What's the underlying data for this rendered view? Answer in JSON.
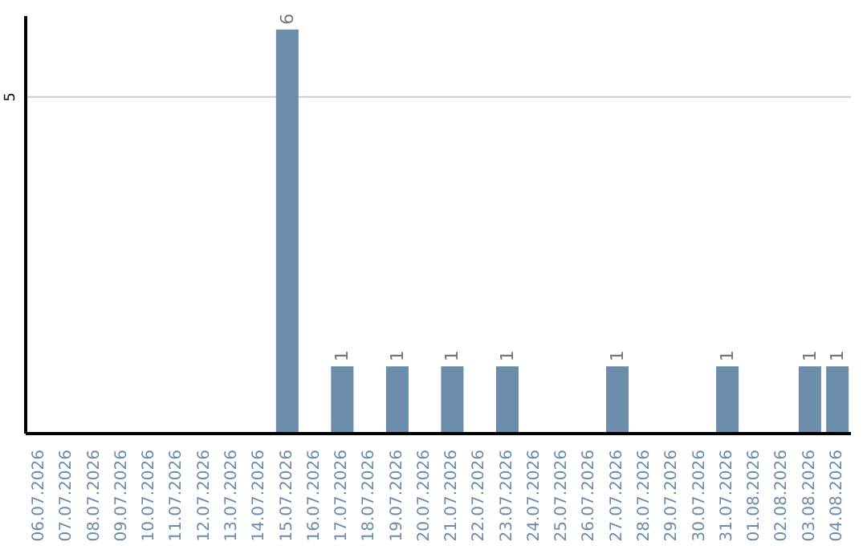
{
  "chart_data": {
    "type": "bar",
    "categories": [
      "06.07.2026",
      "07.07.2026",
      "08.07.2026",
      "09.07.2026",
      "10.07.2026",
      "11.07.2026",
      "12.07.2026",
      "13.07.2026",
      "14.07.2026",
      "15.07.2026",
      "16.07.2026",
      "17.07.2026",
      "18.07.2026",
      "19.07.2026",
      "20.07.2026",
      "21.07.2026",
      "22.07.2026",
      "23.07.2026",
      "24.07.2026",
      "25.07.2026",
      "26.07.2026",
      "27.07.2026",
      "28.07.2026",
      "29.07.2026",
      "30.07.2026",
      "31.07.2026",
      "01.08.2026",
      "02.08.2026",
      "03.08.2026",
      "04.08.2026"
    ],
    "values": [
      0,
      0,
      0,
      0,
      0,
      0,
      0,
      0,
      0,
      6,
      0,
      1,
      0,
      1,
      0,
      1,
      0,
      1,
      0,
      0,
      0,
      1,
      0,
      0,
      0,
      1,
      0,
      0,
      1,
      1
    ],
    "value_labels": [
      null,
      null,
      null,
      null,
      null,
      null,
      null,
      null,
      null,
      "6",
      null,
      "1",
      null,
      "1",
      null,
      "1",
      null,
      "1",
      null,
      null,
      null,
      "1",
      null,
      null,
      null,
      "1",
      null,
      null,
      "1",
      "1"
    ],
    "color": "#6b8cab",
    "ylim": [
      0,
      6.2
    ],
    "yticks": [
      5
    ],
    "grid": "y"
  }
}
